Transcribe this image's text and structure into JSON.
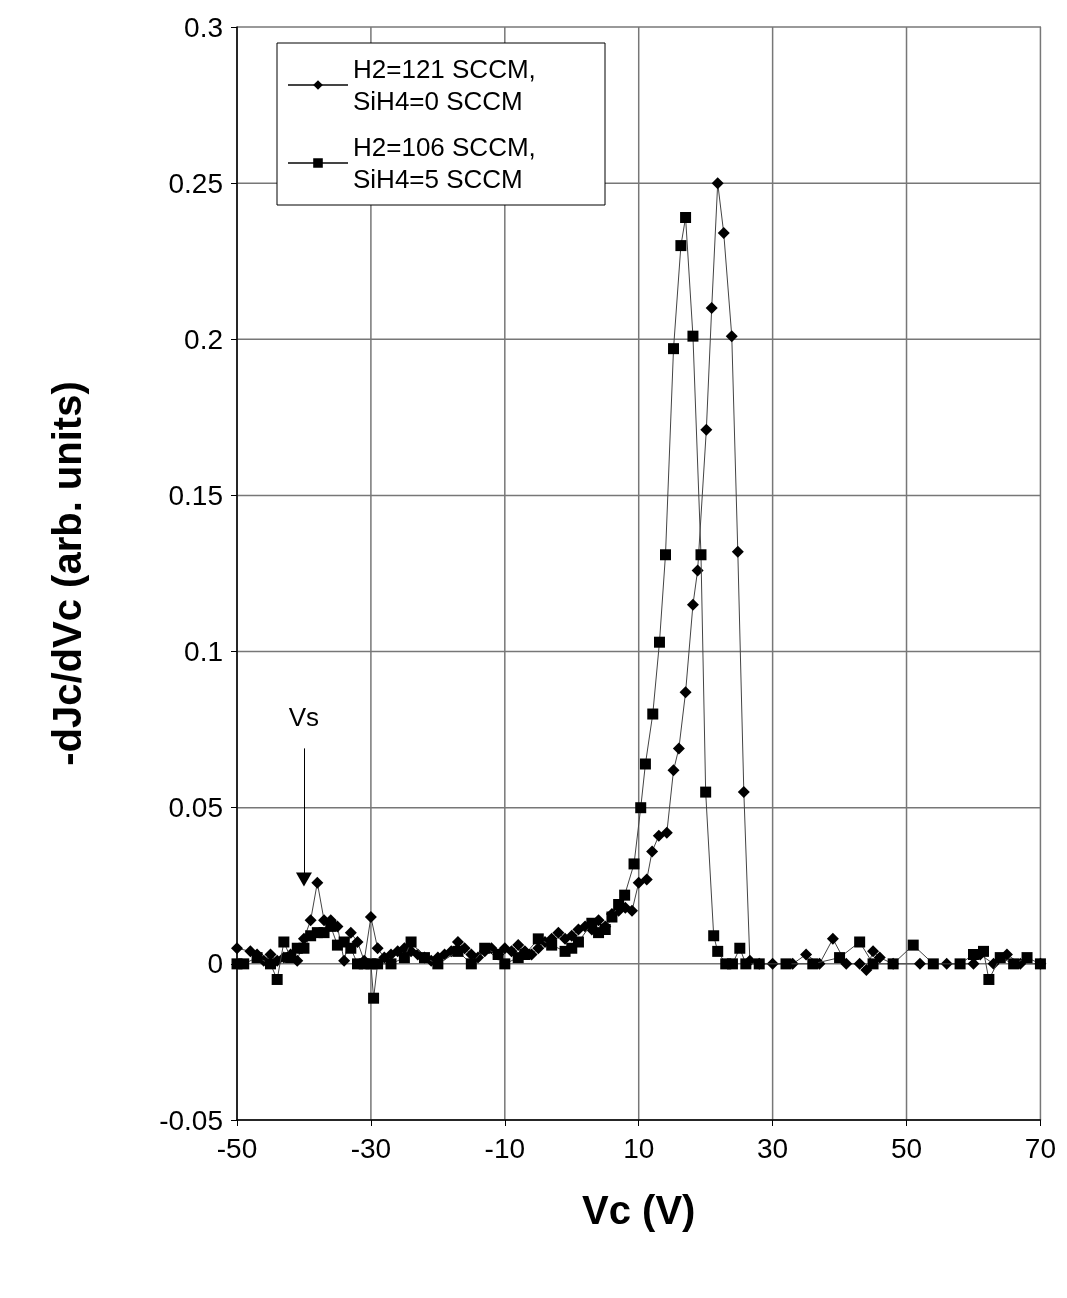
{
  "chart_data": {
    "type": "line",
    "xlabel": "Vc (V)",
    "ylabel": "-dJc/dVc (arb. units)",
    "xlim": [
      -50,
      70
    ],
    "xticks": [
      -50,
      -30,
      -10,
      10,
      30,
      50,
      70
    ],
    "ylim": [
      -0.05,
      0.3
    ],
    "yticks": [
      -0.05,
      0,
      0.05,
      0.1,
      0.15,
      0.2,
      0.25,
      0.3
    ],
    "grid": true,
    "legend": "top left",
    "annotations": [
      {
        "text": "Vs",
        "x": -40,
        "y": 0.027
      }
    ],
    "series": [
      {
        "name": "H2=121 SCCM, SiH4=0 SCCM",
        "color": "#000000",
        "marker": "diamond",
        "x": [
          -50,
          -48,
          -47,
          -46,
          -45,
          -44,
          -43,
          -42,
          -41,
          -40,
          -39,
          -38,
          -37,
          -36,
          -35,
          -34,
          -33,
          -32,
          -31,
          -30,
          -29,
          -28,
          -27,
          -26,
          -25,
          -24,
          -23,
          -22,
          -21,
          -20,
          -19,
          -18,
          -17,
          -16,
          -15,
          -14,
          -13,
          -12,
          -11,
          -10,
          -9,
          -8,
          -7,
          -6,
          -5,
          -4,
          -3,
          -2,
          -1,
          0,
          1,
          2,
          3,
          4,
          5,
          6,
          7,
          8,
          9,
          10,
          11.2,
          12,
          13,
          14.2,
          15.2,
          16,
          17,
          18.1,
          18.8,
          20.1,
          20.9,
          21.8,
          22.7,
          23.9,
          24.8,
          25.7,
          26.6,
          28,
          30,
          33,
          35,
          37,
          39,
          41,
          43,
          44,
          45,
          46,
          48,
          52,
          56,
          60,
          61,
          63,
          65,
          67,
          70
        ],
        "values": [
          0.005,
          0.004,
          0.003,
          0.001,
          0.003,
          0.001,
          0.002,
          0.003,
          0.001,
          0.008,
          0.014,
          0.026,
          0.014,
          0.014,
          0.012,
          0.001,
          0.01,
          0.007,
          0.001,
          0.015,
          0.005,
          0.002,
          0.003,
          0.004,
          0.005,
          0.004,
          0.003,
          0.002,
          0.001,
          0.002,
          0.003,
          0.004,
          0.007,
          0.005,
          0.003,
          0.002,
          0.004,
          0.005,
          0.003,
          0.005,
          0.004,
          0.006,
          0.004,
          0.003,
          0.005,
          0.007,
          0.008,
          0.01,
          0.008,
          0.009,
          0.011,
          0.012,
          0.011,
          0.014,
          0.012,
          0.016,
          0.017,
          0.018,
          0.017,
          0.026,
          0.027,
          0.036,
          0.041,
          0.042,
          0.062,
          0.069,
          0.087,
          0.115,
          0.126,
          0.171,
          0.21,
          0.25,
          0.234,
          0.201,
          0.132,
          0.055,
          0.001,
          0,
          0,
          0,
          0.003,
          0,
          0.008,
          0,
          0,
          -0.002,
          0.004,
          0.002,
          0,
          0,
          0,
          0,
          0.003,
          0,
          0.003,
          0,
          0
        ]
      },
      {
        "name": "H2=106 SCCM, SiH4=5 SCCM",
        "color": "#000000",
        "marker": "square",
        "x": [
          -50,
          -49,
          -47,
          -45,
          -44,
          -43,
          -42,
          -41,
          -40,
          -39,
          -38,
          -37,
          -36,
          -35,
          -34,
          -33,
          -32,
          -31,
          -30,
          -29.6,
          -29,
          -27,
          -25,
          -24,
          -22,
          -20,
          -17,
          -15,
          -13,
          -11,
          -10,
          -8,
          -7,
          -5,
          -3,
          -1,
          0,
          1,
          3,
          4,
          5,
          6,
          7,
          7.9,
          9.3,
          10.3,
          11,
          12.1,
          13.1,
          14,
          15.2,
          16.3,
          17,
          18.1,
          19.3,
          20,
          21.2,
          21.8,
          23,
          24,
          25.1,
          26,
          28,
          32,
          36,
          40,
          43,
          45,
          48,
          51,
          54,
          58,
          60,
          61.5,
          62.3,
          64,
          66,
          68,
          70
        ],
        "values": [
          0,
          0,
          0.002,
          0,
          -0.005,
          0.007,
          0.002,
          0.005,
          0.005,
          0.009,
          0.01,
          0.01,
          0.012,
          0.006,
          0.007,
          0.005,
          0,
          0,
          0,
          -0.011,
          0,
          0,
          0.002,
          0.007,
          0.002,
          0,
          0.004,
          0,
          0.005,
          0.003,
          0,
          0.002,
          0.003,
          0.008,
          0.006,
          0.004,
          0.005,
          0.007,
          0.013,
          0.01,
          0.011,
          0.015,
          0.019,
          0.022,
          0.032,
          0.05,
          0.064,
          0.08,
          0.103,
          0.131,
          0.197,
          0.23,
          0.239,
          0.201,
          0.131,
          0.055,
          0.009,
          0.004,
          0,
          0,
          0.005,
          0,
          0,
          0,
          0,
          0.002,
          0.007,
          0,
          0,
          0.006,
          0,
          0,
          0.003,
          0.004,
          -0.005,
          0.002,
          0,
          0.002,
          0
        ]
      }
    ]
  }
}
